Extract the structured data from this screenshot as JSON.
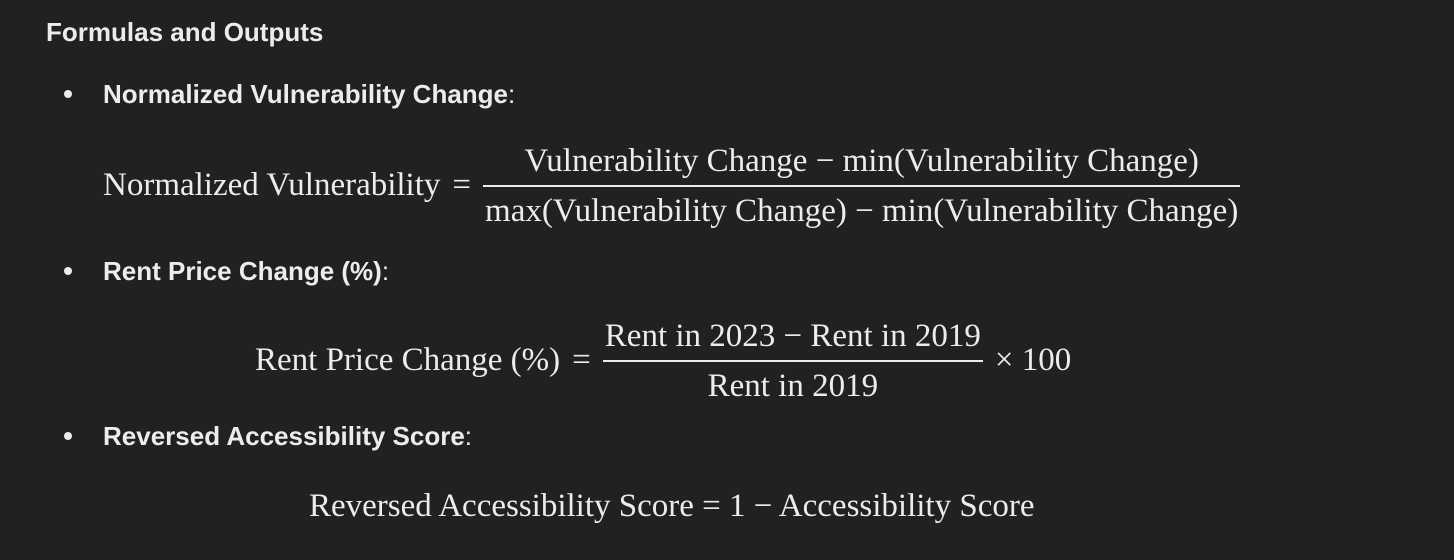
{
  "heading": "Formulas and Outputs",
  "items": [
    {
      "label": "Normalized Vulnerability Change",
      "colon": ":",
      "formula": {
        "lhs": "Normalized Vulnerability",
        "eq": "=",
        "numerator": "Vulnerability Change − min(Vulnerability Change)",
        "denominator": "max(Vulnerability Change) − min(Vulnerability Change)"
      }
    },
    {
      "label": "Rent Price Change (%)",
      "colon": ":",
      "formula": {
        "lhs": "Rent Price Change (%)",
        "eq": "=",
        "numerator": "Rent in 2023 − Rent in 2019",
        "denominator": "Rent in 2019",
        "suffix": "× 100"
      }
    },
    {
      "label": "Reversed Accessibility Score",
      "colon": ":",
      "formula": {
        "text": "Reversed Accessibility Score = 1 − Accessibility Score"
      }
    }
  ]
}
